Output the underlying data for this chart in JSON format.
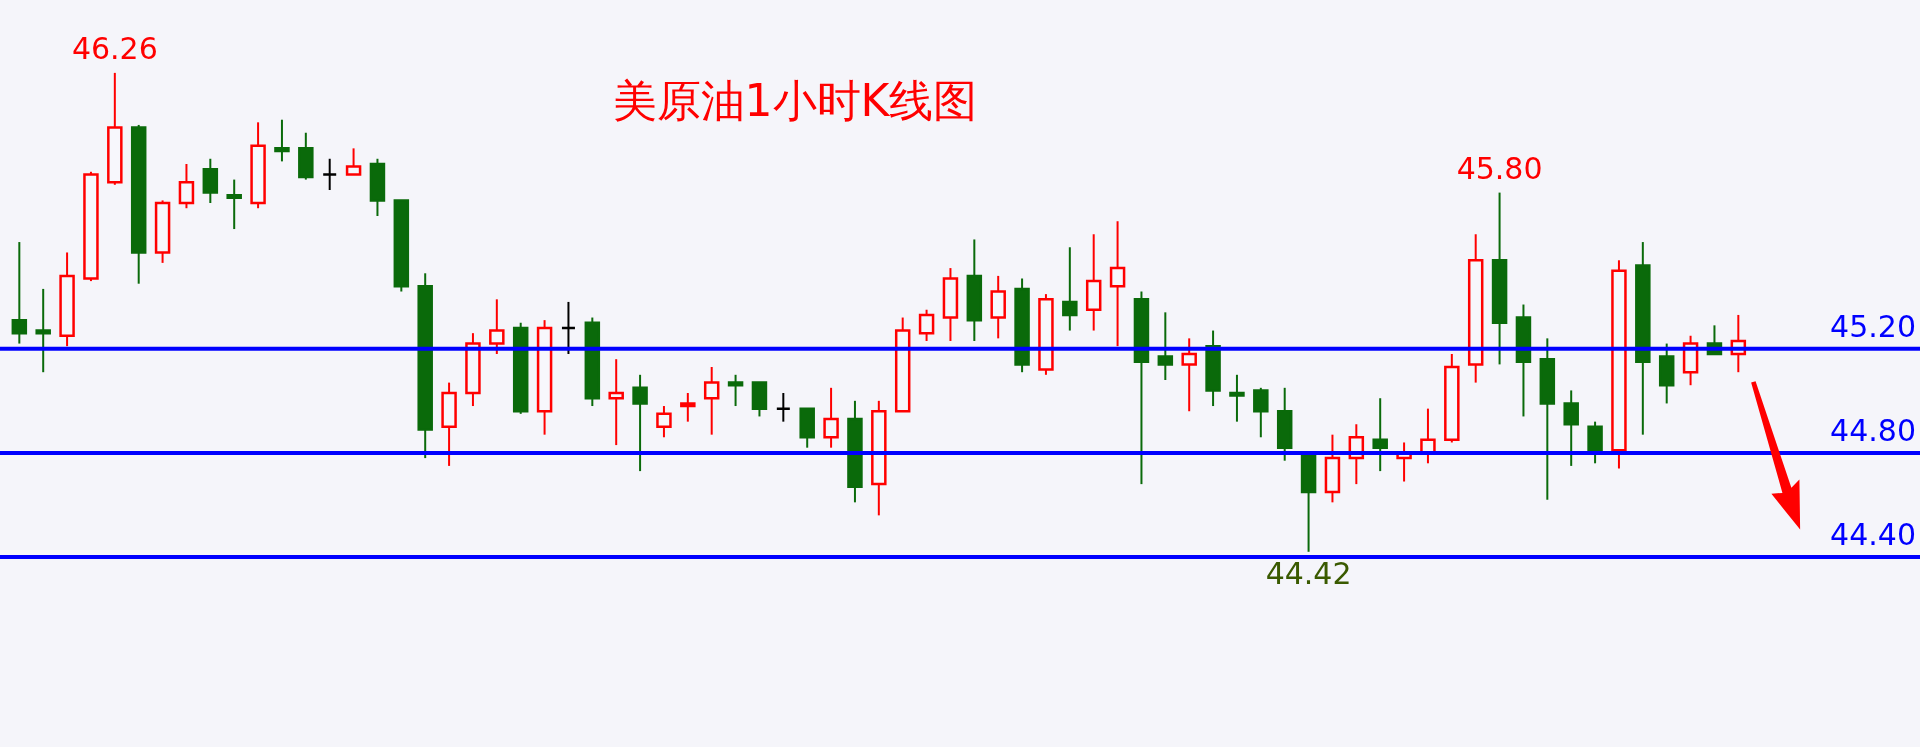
{
  "chart_data": {
    "type": "candlestick",
    "title": "美原油1小时K线图",
    "categories": [
      null,
      null,
      null,
      null,
      null,
      null,
      null,
      null,
      null,
      null,
      null,
      null,
      null,
      null,
      null,
      null,
      null,
      null,
      null,
      null,
      null,
      null,
      null,
      null,
      null,
      null,
      null,
      null,
      null,
      null,
      null,
      null,
      null,
      null,
      null,
      null,
      null,
      null,
      null,
      null,
      null,
      null,
      null,
      null,
      null,
      null,
      null,
      null,
      null,
      null,
      null,
      null,
      null,
      null,
      null,
      null,
      null,
      null,
      null,
      null,
      null,
      null,
      null,
      null,
      null,
      null,
      null,
      null,
      null,
      null,
      null,
      null,
      null
    ],
    "ohlc": [
      [
        45.31,
        45.61,
        45.22,
        45.26
      ],
      [
        45.27,
        45.43,
        45.11,
        45.26
      ],
      [
        45.25,
        45.57,
        45.21,
        45.48
      ],
      [
        45.47,
        45.88,
        45.46,
        45.87
      ],
      [
        45.84,
        46.26,
        45.83,
        46.05
      ],
      [
        46.05,
        46.06,
        45.45,
        45.57
      ],
      [
        45.57,
        45.77,
        45.53,
        45.76
      ],
      [
        45.76,
        45.91,
        45.74,
        45.84
      ],
      [
        45.89,
        45.93,
        45.76,
        45.8
      ],
      [
        45.79,
        45.85,
        45.66,
        45.78
      ],
      [
        45.76,
        46.07,
        45.74,
        45.98
      ],
      [
        45.97,
        46.08,
        45.92,
        45.96
      ],
      [
        45.97,
        46.03,
        45.85,
        45.86
      ],
      [
        45.87,
        45.93,
        45.81,
        45.87
      ],
      [
        45.87,
        45.97,
        45.87,
        45.9
      ],
      [
        45.91,
        45.93,
        45.71,
        45.77
      ],
      [
        45.77,
        45.77,
        45.42,
        45.44
      ],
      [
        45.44,
        45.49,
        44.78,
        44.89
      ],
      [
        44.9,
        45.07,
        44.75,
        45.03
      ],
      [
        45.03,
        45.26,
        44.98,
        45.22
      ],
      [
        45.22,
        45.39,
        45.18,
        45.27
      ],
      [
        45.28,
        45.3,
        44.95,
        44.96
      ],
      [
        44.96,
        45.31,
        44.87,
        45.28
      ],
      [
        45.28,
        45.38,
        45.18,
        45.28
      ],
      [
        45.3,
        45.32,
        44.98,
        45.01
      ],
      [
        45.01,
        45.16,
        44.83,
        45.03
      ],
      [
        45.05,
        45.1,
        44.73,
        44.99
      ],
      [
        44.9,
        44.98,
        44.86,
        44.95
      ],
      [
        44.98,
        45.03,
        44.92,
        44.99
      ],
      [
        45.01,
        45.13,
        44.87,
        45.07
      ],
      [
        45.07,
        45.1,
        44.98,
        45.06
      ],
      [
        45.07,
        45.07,
        44.94,
        44.97
      ],
      [
        44.97,
        45.03,
        44.92,
        44.97
      ],
      [
        44.97,
        44.97,
        44.82,
        44.86
      ],
      [
        44.86,
        45.05,
        44.82,
        44.93
      ],
      [
        44.93,
        45.0,
        44.61,
        44.67
      ],
      [
        44.68,
        45.0,
        44.56,
        44.96
      ],
      [
        44.96,
        45.32,
        44.96,
        45.27
      ],
      [
        45.26,
        45.35,
        45.23,
        45.33
      ],
      [
        45.32,
        45.51,
        45.23,
        45.47
      ],
      [
        45.48,
        45.62,
        45.23,
        45.31
      ],
      [
        45.32,
        45.48,
        45.24,
        45.42
      ],
      [
        45.43,
        45.47,
        45.11,
        45.14
      ],
      [
        45.12,
        45.41,
        45.1,
        45.39
      ],
      [
        45.38,
        45.59,
        45.27,
        45.33
      ],
      [
        45.35,
        45.64,
        45.27,
        45.46
      ],
      [
        45.44,
        45.69,
        45.21,
        45.51
      ],
      [
        45.39,
        45.42,
        44.68,
        45.15
      ],
      [
        45.17,
        45.34,
        45.08,
        45.14
      ],
      [
        45.14,
        45.24,
        44.96,
        45.18
      ],
      [
        45.21,
        45.27,
        44.98,
        45.04
      ],
      [
        45.03,
        45.1,
        44.92,
        45.02
      ],
      [
        45.04,
        45.05,
        44.86,
        44.96
      ],
      [
        44.96,
        45.05,
        44.77,
        44.82
      ],
      [
        44.79,
        44.79,
        44.42,
        44.65
      ],
      [
        44.65,
        44.87,
        44.61,
        44.78
      ],
      [
        44.78,
        44.91,
        44.68,
        44.86
      ],
      [
        44.85,
        45.01,
        44.73,
        44.82
      ],
      [
        44.78,
        44.84,
        44.69,
        44.8
      ],
      [
        44.8,
        44.97,
        44.76,
        44.85
      ],
      [
        44.85,
        45.18,
        44.84,
        45.13
      ],
      [
        45.14,
        45.64,
        45.07,
        45.54
      ],
      [
        45.54,
        45.8,
        45.14,
        45.3
      ],
      [
        45.32,
        45.37,
        44.94,
        45.15
      ],
      [
        45.16,
        45.24,
        44.62,
        44.99
      ],
      [
        44.99,
        45.04,
        44.75,
        44.91
      ],
      [
        44.9,
        44.92,
        44.76,
        44.81
      ],
      [
        44.81,
        45.54,
        44.74,
        45.5
      ],
      [
        45.52,
        45.61,
        44.87,
        45.15
      ],
      [
        45.17,
        45.22,
        44.99,
        45.06
      ],
      [
        45.11,
        45.25,
        45.06,
        45.22
      ],
      [
        45.22,
        45.29,
        45.18,
        45.18
      ],
      [
        45.18,
        45.33,
        45.11,
        45.23
      ]
    ],
    "ylim": [
      43.67,
      46.54
    ],
    "tick_labels": false,
    "ref_lines": [
      {
        "axis": "y",
        "value": 45.2,
        "label": "45.20",
        "color": "#0000ff"
      },
      {
        "axis": "y",
        "value": 44.8,
        "label": "44.80",
        "color": "#0000ff"
      },
      {
        "axis": "y",
        "value": 44.4,
        "label": "44.40",
        "color": "#0000ff"
      }
    ],
    "annotations": [
      {
        "text": "46.26",
        "y": 46.26
      },
      {
        "text": "45.80",
        "y": 45.8
      },
      {
        "text": "44.42",
        "y": 44.42
      }
    ]
  }
}
